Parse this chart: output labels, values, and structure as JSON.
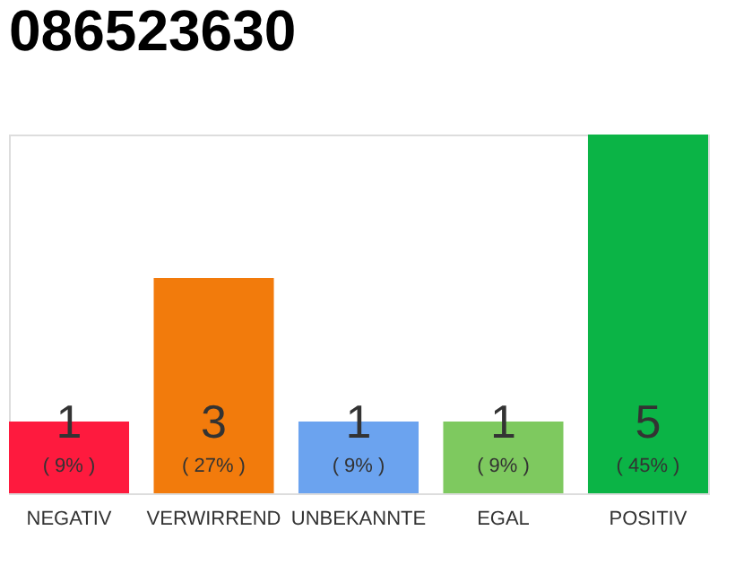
{
  "chart_data": {
    "type": "bar",
    "title": "086523630",
    "categories": [
      "NEGATIV",
      "VERWIRREND",
      "UNBEKANNTE",
      "EGAL",
      "POSITIV"
    ],
    "colors": [
      "#fe1a3e",
      "#f27b0c",
      "#6ba3ef",
      "#7ec95f",
      "#0bb446"
    ],
    "values": [
      1,
      3,
      1,
      1,
      5
    ],
    "data_labels": true,
    "annotations": [
      {
        "text": "( 9% )",
        "x": "NEGATIV",
        "y": 0
      },
      {
        "text": "( 27% )",
        "x": "VERWIRREND",
        "y": 0
      },
      {
        "text": "( 9% )",
        "x": "UNBEKANNTE",
        "y": 0
      },
      {
        "text": "( 9% )",
        "x": "EGAL",
        "y": 0
      },
      {
        "text": "( 45% )",
        "x": "POSITIV",
        "y": 0
      }
    ],
    "grid": false,
    "tick_labels": "x"
  }
}
